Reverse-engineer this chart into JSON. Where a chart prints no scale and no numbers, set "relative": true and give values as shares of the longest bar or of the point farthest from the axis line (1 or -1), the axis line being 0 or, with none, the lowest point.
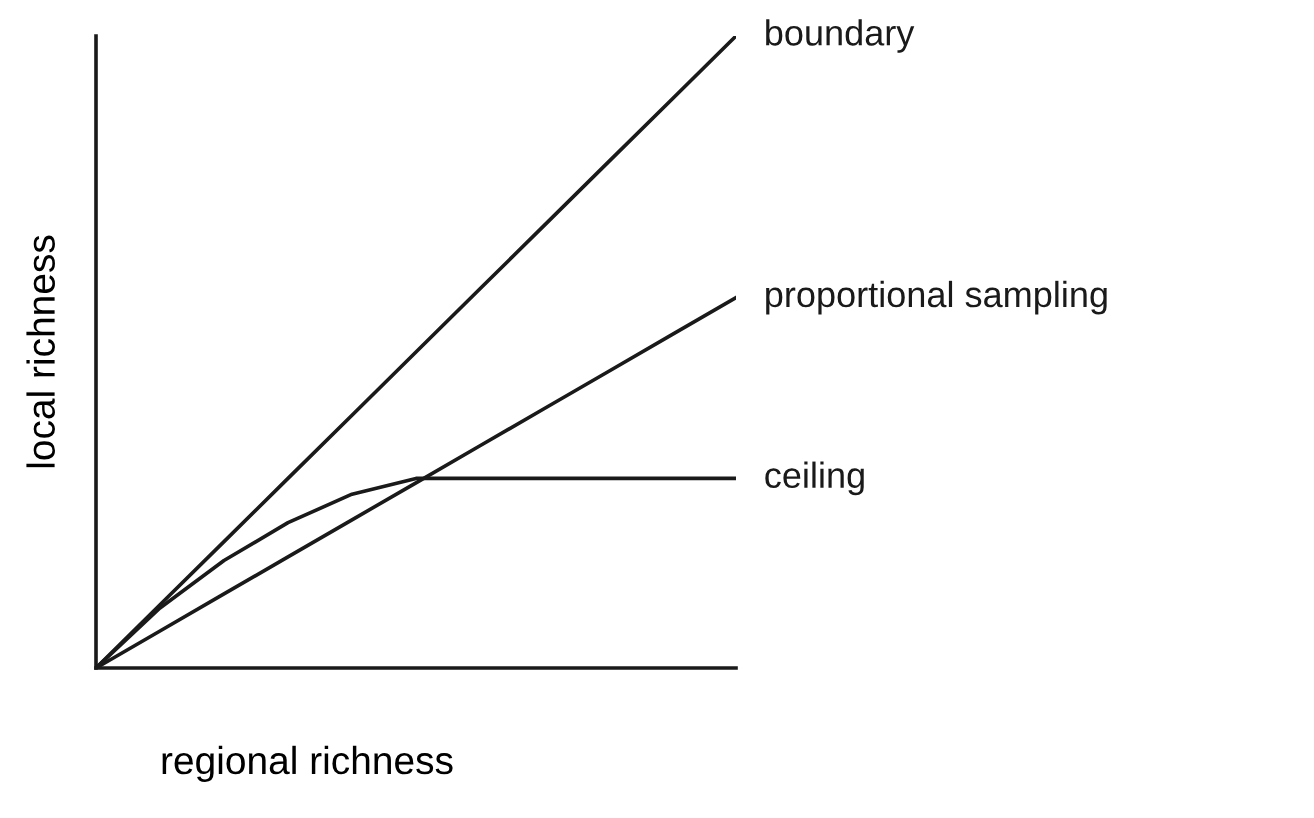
{
  "chart_data": {
    "type": "line",
    "relative": true,
    "xlabel": "regional richness",
    "ylabel": "local richness",
    "categories": [
      null,
      null,
      null,
      null,
      null,
      null,
      null,
      null,
      null,
      null,
      null
    ],
    "series": [
      {
        "name": "boundary",
        "color": "#1a1a1a",
        "values": [
          0,
          0.1,
          0.2,
          0.3,
          0.4,
          0.5,
          0.6,
          0.7,
          0.8,
          0.9,
          1
        ]
      },
      {
        "name": "proportional sampling",
        "color": "#1a1a1a",
        "values": [
          0,
          0.0586,
          0.1172,
          0.1758,
          0.2344,
          0.293,
          0.3516,
          0.4102,
          0.4688,
          0.5274,
          0.586
        ]
      },
      {
        "name": "ceiling",
        "color": "#1a1a1a",
        "values": [
          0,
          0.095,
          0.17,
          0.23,
          0.275,
          0.3,
          0.3,
          0.3,
          0.3,
          0.3,
          0.3
        ]
      }
    ],
    "marker": "none",
    "line_style": "solid",
    "tick_labels": false
  }
}
